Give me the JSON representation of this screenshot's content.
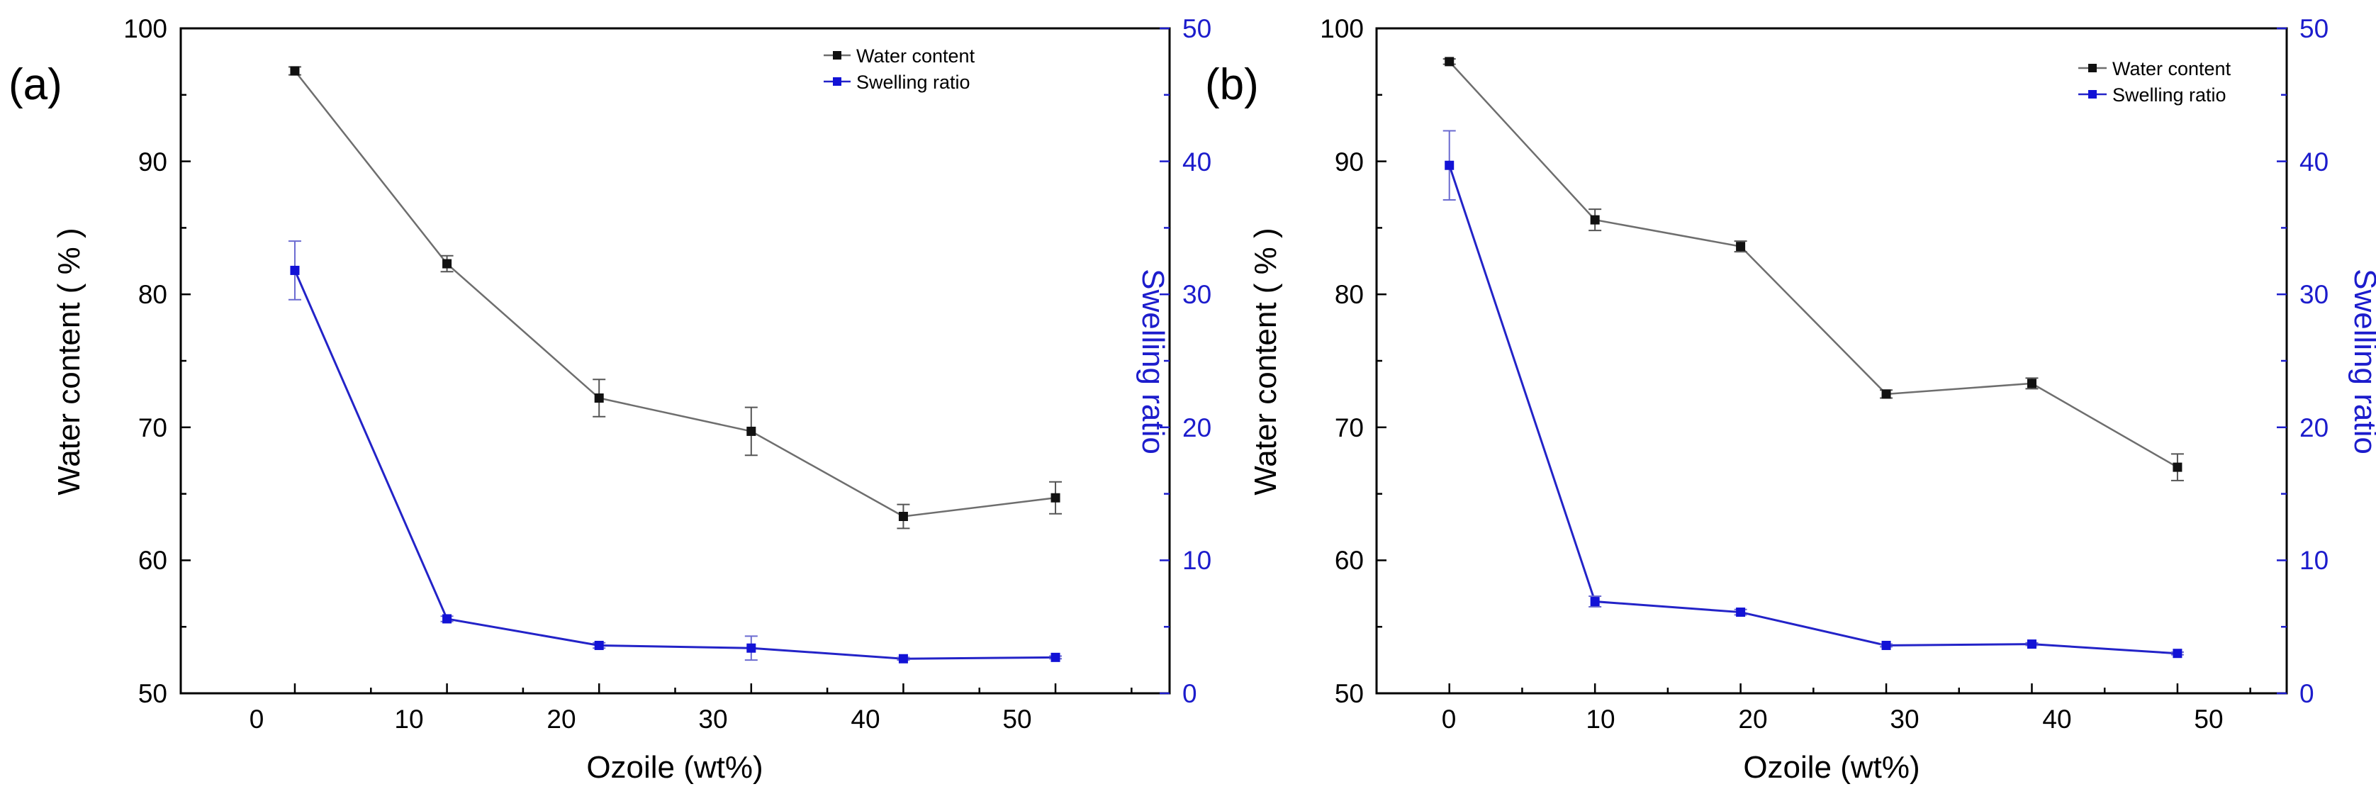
{
  "colors": {
    "water_content": "#6e6e6e",
    "water_marker": "#111111",
    "swelling_ratio": "#2323c8",
    "swelling_marker": "#1212d6",
    "right_axis": "#1c1ccc",
    "axis": "#000000"
  },
  "chart_data": [
    {
      "type": "line",
      "panel_label": "(a)",
      "xlabel": "Ozoile (wt%)",
      "ylabel": "Water content ( % )",
      "y2label": "Swelling ratio",
      "x": [
        0,
        10,
        20,
        30,
        40,
        50
      ],
      "x_ticks": [
        "0",
        "10",
        "20",
        "30",
        "40",
        "50"
      ],
      "xlim": [
        -7.5,
        57.5
      ],
      "ylim": [
        50,
        100
      ],
      "y_ticks": [
        "50",
        "60",
        "70",
        "80",
        "90",
        "100"
      ],
      "y2lim": [
        0,
        50
      ],
      "y2_ticks": [
        "0",
        "10",
        "20",
        "30",
        "40",
        "50"
      ],
      "legend_position": "top-right",
      "series": [
        {
          "name": "Water content",
          "axis": "left",
          "values": [
            96.8,
            82.3,
            72.2,
            69.7,
            63.3,
            64.7
          ],
          "errors": [
            0.3,
            0.6,
            1.4,
            1.8,
            0.9,
            1.2
          ]
        },
        {
          "name": "Swelling ratio",
          "axis": "right",
          "values": [
            31.8,
            5.6,
            3.6,
            3.4,
            2.6,
            2.7
          ],
          "errors": [
            2.2,
            0.2,
            0.2,
            0.9,
            0.1,
            0.1
          ]
        }
      ]
    },
    {
      "type": "line",
      "panel_label": "(b)",
      "xlabel": "Ozoile (wt%)",
      "ylabel": "Water content ( % )",
      "y2label": "Swelling ratio",
      "x": [
        0,
        10,
        20,
        30,
        40,
        50
      ],
      "x_ticks": [
        "0",
        "10",
        "20",
        "30",
        "40",
        "50"
      ],
      "xlim": [
        -5,
        57.5
      ],
      "ylim": [
        50,
        100
      ],
      "y_ticks": [
        "50",
        "60",
        "70",
        "80",
        "90",
        "100"
      ],
      "y2lim": [
        0,
        50
      ],
      "y2_ticks": [
        "0",
        "10",
        "20",
        "30",
        "40",
        "50"
      ],
      "legend_position": "top-right",
      "series": [
        {
          "name": "Water content",
          "axis": "left",
          "values": [
            97.5,
            85.6,
            83.6,
            72.5,
            73.3,
            67.0
          ],
          "errors": [
            0.2,
            0.8,
            0.4,
            0.3,
            0.4,
            1.0
          ]
        },
        {
          "name": "Swelling ratio",
          "axis": "right",
          "values": [
            39.7,
            6.9,
            6.1,
            3.6,
            3.7,
            3.0
          ],
          "errors": [
            2.6,
            0.4,
            0.2,
            0.1,
            0.1,
            0.1
          ]
        }
      ]
    }
  ]
}
